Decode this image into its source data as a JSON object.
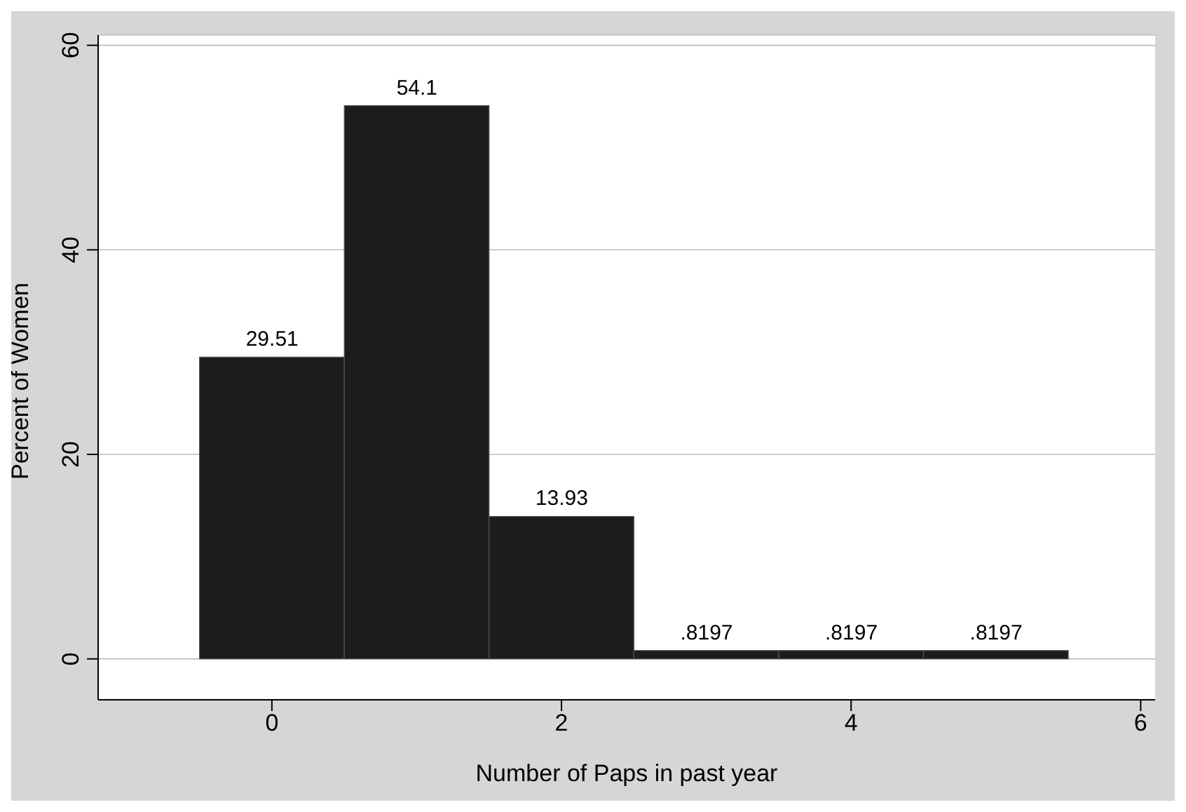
{
  "chart_data": {
    "type": "histogram",
    "xlabel": "Number of Paps in past year",
    "ylabel": "Percent of Women",
    "bins": [
      -0.5,
      0.5,
      1.5,
      2.5,
      3.5,
      4.5,
      5.5
    ],
    "values": [
      29.51,
      54.1,
      13.93,
      0.8197,
      0.8197,
      0.8197
    ],
    "value_labels": [
      "29.51",
      "54.1",
      "13.93",
      ".8197",
      ".8197",
      ".8197"
    ],
    "color": "#1c1c1c",
    "xlim": [
      -1.2,
      6.1
    ],
    "xticks": [
      0,
      2,
      4,
      6
    ],
    "ylim": [
      -4,
      61
    ],
    "yticks": [
      0,
      20,
      40,
      60
    ],
    "grid": "y"
  }
}
